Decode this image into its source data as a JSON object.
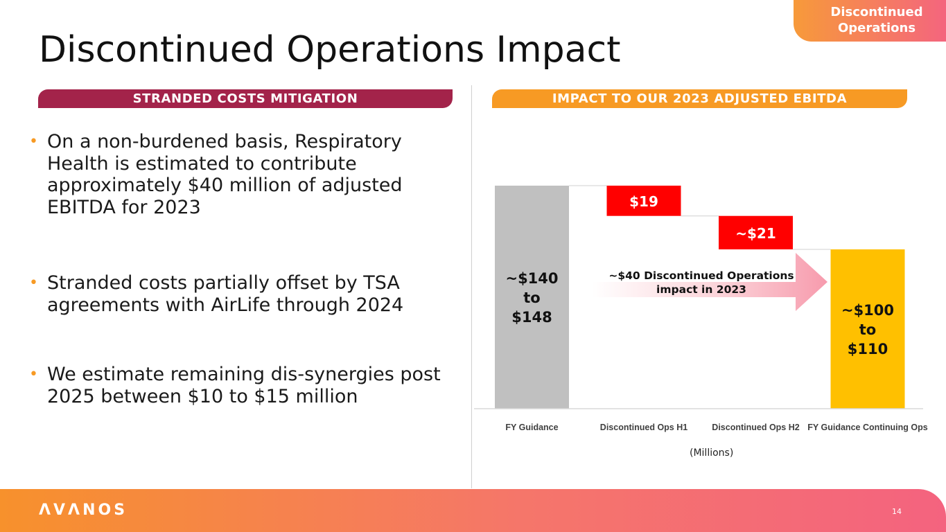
{
  "section_tag": {
    "line1": "Discontinued",
    "line2": "Operations"
  },
  "title": "Discontinued Operations Impact",
  "left_header": "STRANDED COSTS MITIGATION",
  "right_header": "IMPACT TO OUR 2023 ADJUSTED EBITDA",
  "bullets": [
    "On a non-burdened basis, Respiratory Health is estimated to contribute approximately $40 million of adjusted EBITDA for 2023",
    "Stranded costs partially offset by TSA agreements with AirLife through 2024",
    "We estimate remaining dis-synergies post 2025 between $10 to $15 million"
  ],
  "chart_data": {
    "type": "waterfall",
    "categories": [
      "FY Guidance",
      "Discontinued Ops H1",
      "Discontinued Ops H2",
      "FY Guidance Continuing Ops"
    ],
    "bars": [
      {
        "category": "FY Guidance",
        "start": 0,
        "end": 140,
        "label_lines": [
          "~$140",
          "to",
          "$148"
        ],
        "color": "#c0c0c0",
        "label_color": "#111111"
      },
      {
        "category": "Discontinued Ops H1",
        "start": 140,
        "end": 121,
        "label_lines": [
          "$19"
        ],
        "color": "#ff0000",
        "label_color": "#ffffff"
      },
      {
        "category": "Discontinued Ops H2",
        "start": 121,
        "end": 100,
        "label_lines": [
          "~$21"
        ],
        "color": "#ff0000",
        "label_color": "#ffffff"
      },
      {
        "category": "FY Guidance Continuing Ops",
        "start": 0,
        "end": 100,
        "label_lines": [
          "~$100",
          "to",
          "$110"
        ],
        "color": "#ffc000",
        "label_color": "#111111"
      }
    ],
    "annotation": {
      "line1": "~$40 Discontinued Operations",
      "line2": "impact in 2023"
    },
    "units_label": "(Millions)",
    "ylim": [
      0,
      140
    ]
  },
  "footer": {
    "logo": "ΛVΛNOS",
    "page_number": "14"
  }
}
